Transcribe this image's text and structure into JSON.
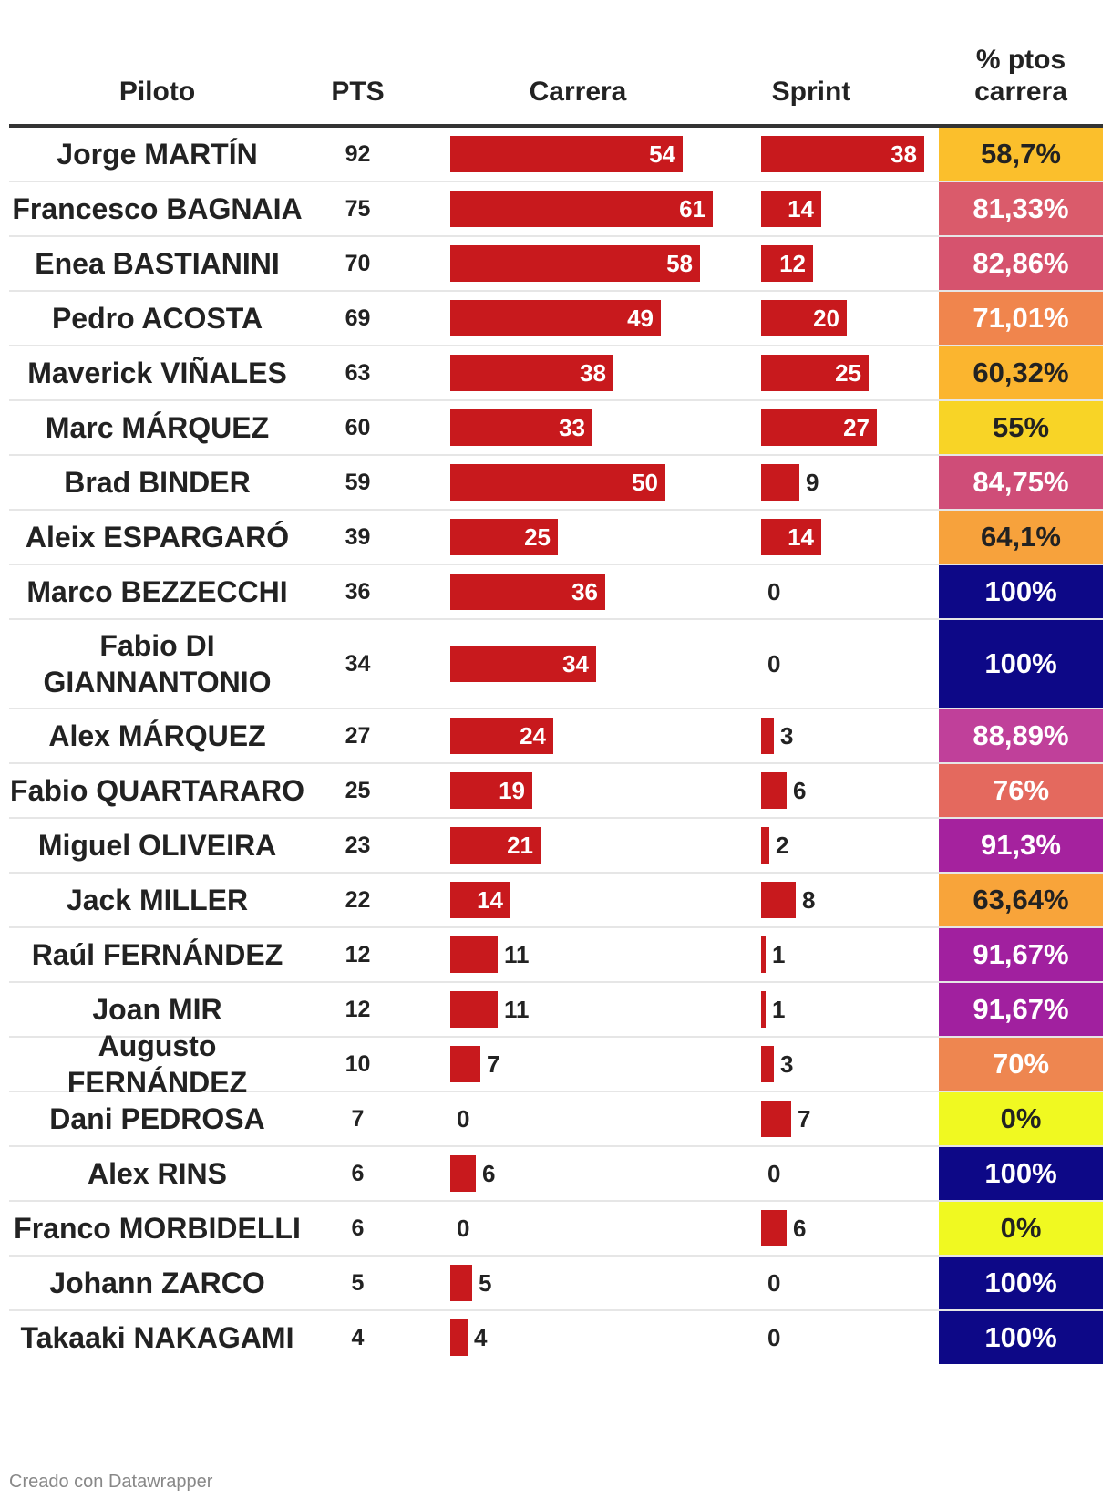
{
  "headers": {
    "piloto": "Piloto",
    "pts": "PTS",
    "carrera": "Carrera",
    "sprint": "Sprint",
    "pct_line1": "% ptos",
    "pct_line2": "carrera"
  },
  "chart_data": {
    "type": "table",
    "columns": [
      "Piloto",
      "PTS",
      "Carrera",
      "Sprint",
      "% ptos carrera"
    ],
    "rows": [
      {
        "piloto": "Jorge MARTÍN",
        "pts": 92,
        "carrera": 54,
        "sprint": 38,
        "pct": "58,7%",
        "pct_color": "#fbbf2c",
        "pct_text_color": "#222222"
      },
      {
        "piloto": "Francesco BAGNAIA",
        "pts": 75,
        "carrera": 61,
        "sprint": 14,
        "pct": "81,33%",
        "pct_color": "#da5b6b",
        "pct_text_color": "#ffffff"
      },
      {
        "piloto": "Enea BASTIANINI",
        "pts": 70,
        "carrera": 58,
        "sprint": 12,
        "pct": "82,86%",
        "pct_color": "#d6536e",
        "pct_text_color": "#ffffff"
      },
      {
        "piloto": "Pedro ACOSTA",
        "pts": 69,
        "carrera": 49,
        "sprint": 20,
        "pct": "71,01%",
        "pct_color": "#f0854d",
        "pct_text_color": "#ffffff"
      },
      {
        "piloto": "Maverick VIÑALES",
        "pts": 63,
        "carrera": 38,
        "sprint": 25,
        "pct": "60,32%",
        "pct_color": "#fbb52f",
        "pct_text_color": "#222222"
      },
      {
        "piloto": "Marc MÁRQUEZ",
        "pts": 60,
        "carrera": 33,
        "sprint": 27,
        "pct": "55%",
        "pct_color": "#f8d426",
        "pct_text_color": "#222222"
      },
      {
        "piloto": "Brad BINDER",
        "pts": 59,
        "carrera": 50,
        "sprint": 9,
        "pct": "84,75%",
        "pct_color": "#cf4d78",
        "pct_text_color": "#ffffff"
      },
      {
        "piloto": "Aleix ESPARGARÓ",
        "pts": 39,
        "carrera": 25,
        "sprint": 14,
        "pct": "64,1%",
        "pct_color": "#f7a23c",
        "pct_text_color": "#222222"
      },
      {
        "piloto": "Marco BEZZECCHI",
        "pts": 36,
        "carrera": 36,
        "sprint": 0,
        "pct": "100%",
        "pct_color": "#0d0887",
        "pct_text_color": "#ffffff"
      },
      {
        "piloto": "Fabio DI GIANNANTONIO",
        "pts": 34,
        "carrera": 34,
        "sprint": 0,
        "pct": "100%",
        "pct_color": "#0d0887",
        "pct_text_color": "#ffffff"
      },
      {
        "piloto": "Alex MÁRQUEZ",
        "pts": 27,
        "carrera": 24,
        "sprint": 3,
        "pct": "88,89%",
        "pct_color": "#c0409a",
        "pct_text_color": "#ffffff"
      },
      {
        "piloto": "Fabio QUARTARARO",
        "pts": 25,
        "carrera": 19,
        "sprint": 6,
        "pct": "76%",
        "pct_color": "#e4695e",
        "pct_text_color": "#ffffff"
      },
      {
        "piloto": "Miguel OLIVEIRA",
        "pts": 23,
        "carrera": 21,
        "sprint": 2,
        "pct": "91,3%",
        "pct_color": "#a5229e",
        "pct_text_color": "#ffffff"
      },
      {
        "piloto": "Jack MILLER",
        "pts": 22,
        "carrera": 14,
        "sprint": 8,
        "pct": "63,64%",
        "pct_color": "#f8a43a",
        "pct_text_color": "#222222"
      },
      {
        "piloto": "Raúl FERNÁNDEZ",
        "pts": 12,
        "carrera": 11,
        "sprint": 1,
        "pct": "91,67%",
        "pct_color": "#a1209f",
        "pct_text_color": "#ffffff"
      },
      {
        "piloto": "Joan MIR",
        "pts": 12,
        "carrera": 11,
        "sprint": 1,
        "pct": "91,67%",
        "pct_color": "#a1209f",
        "pct_text_color": "#ffffff"
      },
      {
        "piloto": "Augusto FERNÁNDEZ",
        "pts": 10,
        "carrera": 7,
        "sprint": 3,
        "pct": "70%",
        "pct_color": "#ee8650",
        "pct_text_color": "#ffffff"
      },
      {
        "piloto": "Dani PEDROSA",
        "pts": 7,
        "carrera": 0,
        "sprint": 7,
        "pct": "0%",
        "pct_color": "#f0f921",
        "pct_text_color": "#222222"
      },
      {
        "piloto": "Alex RINS",
        "pts": 6,
        "carrera": 6,
        "sprint": 0,
        "pct": "100%",
        "pct_color": "#0d0887",
        "pct_text_color": "#ffffff"
      },
      {
        "piloto": "Franco MORBIDELLI",
        "pts": 6,
        "carrera": 0,
        "sprint": 6,
        "pct": "0%",
        "pct_color": "#f0f921",
        "pct_text_color": "#222222"
      },
      {
        "piloto": "Johann ZARCO",
        "pts": 5,
        "carrera": 5,
        "sprint": 0,
        "pct": "100%",
        "pct_color": "#0d0887",
        "pct_text_color": "#ffffff"
      },
      {
        "piloto": "Takaaki NAKAGAMI",
        "pts": 4,
        "carrera": 4,
        "sprint": 0,
        "pct": "100%",
        "pct_color": "#0d0887",
        "pct_text_color": "#ffffff"
      }
    ],
    "bar_color": "#c8191d"
  },
  "footer": "Creado con Datawrapper"
}
